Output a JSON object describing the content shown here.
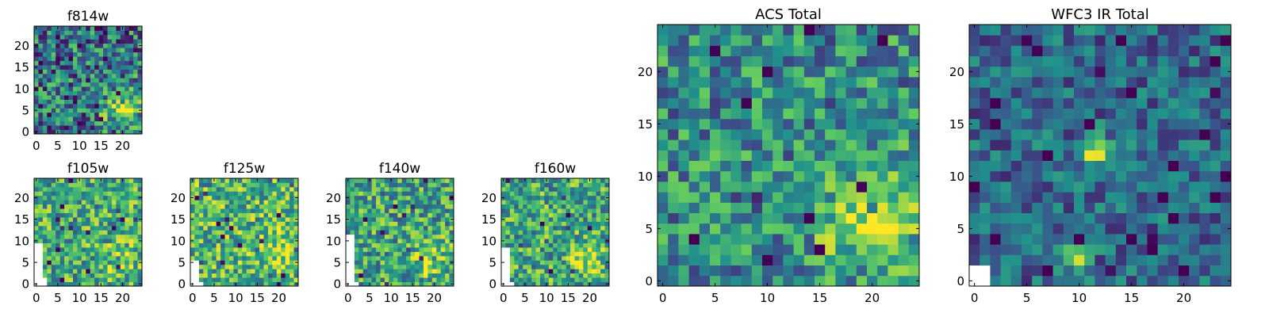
{
  "figure": {
    "colormap": [
      "#440154",
      "#3b528b",
      "#21918c",
      "#5ec962",
      "#fde725"
    ],
    "blank_color": "#ffffff"
  },
  "chart_data": [
    {
      "type": "heatmap",
      "title": "f814w",
      "grid_size": 25,
      "xlim": [
        0,
        24
      ],
      "ylim": [
        0,
        24
      ],
      "xticks": [
        "0",
        "5",
        "10",
        "15",
        "20"
      ],
      "yticks": [
        "0",
        "5",
        "10",
        "15",
        "20"
      ],
      "tick_values": [
        0,
        5,
        10,
        15,
        20
      ],
      "peaks": [
        [
          20,
          6,
          3.0,
          0.55
        ]
      ],
      "noise": 0.38,
      "base": 0.38,
      "seed": 11,
      "blank": []
    },
    {
      "type": "heatmap",
      "title": "f105w",
      "grid_size": 25,
      "xlim": [
        0,
        24
      ],
      "ylim": [
        0,
        24
      ],
      "xticks": [
        "0",
        "5",
        "10",
        "15",
        "20"
      ],
      "yticks": [
        "0",
        "5",
        "10",
        "15",
        "20"
      ],
      "tick_values": [
        0,
        5,
        10,
        15,
        20
      ],
      "peaks": [
        [
          20,
          6,
          2.5,
          0.25
        ]
      ],
      "noise": 0.32,
      "base": 0.62,
      "seed": 23,
      "blank": [
        [
          0,
          0,
          2,
          10
        ],
        [
          2,
          0,
          3,
          2
        ]
      ]
    },
    {
      "type": "heatmap",
      "title": "f125w",
      "grid_size": 25,
      "xlim": [
        0,
        24
      ],
      "ylim": [
        0,
        24
      ],
      "xticks": [
        "0",
        "5",
        "10",
        "15",
        "20"
      ],
      "yticks": [
        "0",
        "5",
        "10",
        "15",
        "20"
      ],
      "tick_values": [
        0,
        5,
        10,
        15,
        20
      ],
      "peaks": [
        [
          20,
          8,
          3.0,
          0.2
        ]
      ],
      "noise": 0.32,
      "base": 0.66,
      "seed": 37,
      "blank": [
        [
          0,
          0,
          2,
          6
        ],
        [
          2,
          0,
          3,
          1
        ]
      ]
    },
    {
      "type": "heatmap",
      "title": "f140w",
      "grid_size": 25,
      "xlim": [
        0,
        24
      ],
      "ylim": [
        0,
        24
      ],
      "xticks": [
        "0",
        "5",
        "10",
        "15",
        "20"
      ],
      "yticks": [
        "0",
        "5",
        "10",
        "15",
        "20"
      ],
      "tick_values": [
        0,
        5,
        10,
        15,
        20
      ],
      "peaks": [
        [
          19,
          6,
          3.0,
          0.28
        ]
      ],
      "noise": 0.32,
      "base": 0.58,
      "seed": 41,
      "blank": [
        [
          0,
          0,
          2,
          12
        ],
        [
          2,
          0,
          3,
          1
        ]
      ]
    },
    {
      "type": "heatmap",
      "title": "f160w",
      "grid_size": 25,
      "xlim": [
        0,
        24
      ],
      "ylim": [
        0,
        24
      ],
      "xticks": [
        "0",
        "5",
        "10",
        "15",
        "20"
      ],
      "yticks": [
        "0",
        "5",
        "10",
        "15",
        "20"
      ],
      "tick_values": [
        0,
        5,
        10,
        15,
        20
      ],
      "peaks": [
        [
          20,
          6,
          3.0,
          0.28
        ]
      ],
      "noise": 0.32,
      "base": 0.6,
      "seed": 53,
      "blank": [
        [
          0,
          0,
          2,
          9
        ],
        [
          2,
          0,
          3,
          1
        ]
      ]
    },
    {
      "type": "heatmap",
      "title": "ACS Total",
      "grid_size": 25,
      "xlim": [
        0,
        24
      ],
      "ylim": [
        0,
        24
      ],
      "xticks": [
        "0",
        "5",
        "10",
        "15",
        "20"
      ],
      "yticks": [
        "0",
        "5",
        "10",
        "15",
        "20"
      ],
      "tick_values": [
        0,
        5,
        10,
        15,
        20
      ],
      "peaks": [
        [
          20,
          6,
          3.2,
          0.5
        ]
      ],
      "noise": 0.3,
      "base": 0.48,
      "seed": 11,
      "blank": []
    },
    {
      "type": "heatmap",
      "title": "WFC3 IR Total",
      "grid_size": 25,
      "xlim": [
        0,
        24
      ],
      "ylim": [
        0,
        24
      ],
      "xticks": [
        "0",
        "5",
        "10",
        "15",
        "20"
      ],
      "yticks": [
        "0",
        "5",
        "10",
        "15",
        "20"
      ],
      "tick_values": [
        0,
        5,
        10,
        15,
        20
      ],
      "peaks": [
        [
          11.5,
          12.5,
          1.0,
          0.6
        ],
        [
          9.5,
          2.5,
          1.0,
          0.55
        ]
      ],
      "noise": 0.22,
      "base": 0.34,
      "seed": 71,
      "blank": [
        [
          0,
          0,
          2,
          2
        ]
      ]
    }
  ]
}
